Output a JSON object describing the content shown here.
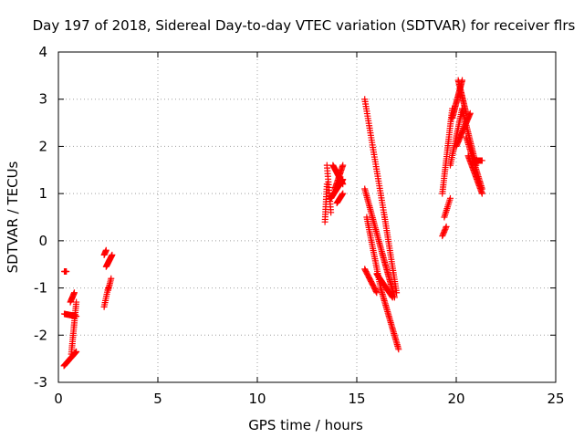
{
  "chart_data": {
    "type": "scatter",
    "title": "Day 197 of 2018, Sidereal Day-to-day VTEC variation (SDTVAR) for receiver flrs",
    "xlabel": "GPS time / hours",
    "ylabel": "SDTVAR / TECUs",
    "xlim": [
      0,
      25
    ],
    "ylim": [
      -3,
      4
    ],
    "x_ticks": [
      "0",
      "5",
      "10",
      "15",
      "20",
      "25"
    ],
    "y_ticks": [
      "-3",
      "-2",
      "-1",
      "0",
      "1",
      "2",
      "3",
      "4"
    ],
    "grid": true,
    "legend": "none",
    "marker": "plus",
    "color": "#ff0000",
    "segments": [
      {
        "x0": 0.3,
        "x1": 0.4,
        "y0": -0.65,
        "y1": -0.65,
        "n": 6
      },
      {
        "x0": 0.28,
        "x1": 0.9,
        "y0": -2.65,
        "y1": -2.35,
        "n": 26
      },
      {
        "x0": 0.3,
        "x1": 0.9,
        "y0": -1.55,
        "y1": -1.6,
        "n": 18
      },
      {
        "x0": 0.65,
        "x1": 0.9,
        "y0": -2.4,
        "y1": -1.3,
        "n": 26
      },
      {
        "x0": 0.6,
        "x1": 0.8,
        "y0": -1.3,
        "y1": -1.1,
        "n": 10
      },
      {
        "x0": 2.3,
        "x1": 2.5,
        "y0": -1.4,
        "y1": -1.0,
        "n": 10
      },
      {
        "x0": 2.5,
        "x1": 2.65,
        "y0": -1.05,
        "y1": -0.8,
        "n": 8
      },
      {
        "x0": 2.3,
        "x1": 2.4,
        "y0": -0.3,
        "y1": -0.2,
        "n": 6
      },
      {
        "x0": 2.4,
        "x1": 2.7,
        "y0": -0.55,
        "y1": -0.3,
        "n": 16
      },
      {
        "x0": 13.4,
        "x1": 13.5,
        "y0": 0.4,
        "y1": 1.2,
        "n": 16
      },
      {
        "x0": 13.5,
        "x1": 13.7,
        "y0": 1.6,
        "y1": 0.6,
        "n": 18
      },
      {
        "x0": 13.7,
        "x1": 14.3,
        "y0": 0.9,
        "y1": 1.3,
        "n": 30
      },
      {
        "x0": 13.8,
        "x1": 14.3,
        "y0": 1.6,
        "y1": 1.2,
        "n": 24
      },
      {
        "x0": 13.9,
        "x1": 14.3,
        "y0": 1.1,
        "y1": 1.6,
        "n": 20
      },
      {
        "x0": 14.0,
        "x1": 14.3,
        "y0": 0.8,
        "y1": 1.0,
        "n": 12
      },
      {
        "x0": 15.4,
        "x1": 16.4,
        "y0": 3.0,
        "y1": 0.5,
        "n": 50
      },
      {
        "x0": 16.4,
        "x1": 17.0,
        "y0": 0.5,
        "y1": -1.1,
        "n": 35
      },
      {
        "x0": 15.4,
        "x1": 16.3,
        "y0": 1.1,
        "y1": -0.3,
        "n": 40
      },
      {
        "x0": 16.3,
        "x1": 16.9,
        "y0": -0.3,
        "y1": -1.2,
        "n": 30
      },
      {
        "x0": 15.5,
        "x1": 16.2,
        "y0": 0.5,
        "y1": -1.0,
        "n": 35
      },
      {
        "x0": 16.2,
        "x1": 17.1,
        "y0": -1.0,
        "y1": -2.3,
        "n": 40
      },
      {
        "x0": 15.4,
        "x1": 16.0,
        "y0": -0.6,
        "y1": -1.1,
        "n": 20
      },
      {
        "x0": 16.0,
        "x1": 16.8,
        "y0": -0.7,
        "y1": -1.2,
        "n": 25
      },
      {
        "x0": 19.3,
        "x1": 19.5,
        "y0": 0.1,
        "y1": 0.3,
        "n": 8
      },
      {
        "x0": 19.4,
        "x1": 19.7,
        "y0": 0.5,
        "y1": 0.9,
        "n": 12
      },
      {
        "x0": 19.3,
        "x1": 19.8,
        "y0": 1.0,
        "y1": 2.8,
        "n": 40
      },
      {
        "x0": 19.8,
        "x1": 20.3,
        "y0": 2.6,
        "y1": 3.4,
        "n": 30
      },
      {
        "x0": 20.1,
        "x1": 20.5,
        "y0": 3.4,
        "y1": 2.7,
        "n": 25
      },
      {
        "x0": 19.7,
        "x1": 20.3,
        "y0": 1.6,
        "y1": 2.8,
        "n": 30
      },
      {
        "x0": 20.0,
        "x1": 20.7,
        "y0": 2.0,
        "y1": 2.7,
        "n": 30
      },
      {
        "x0": 20.3,
        "x1": 21.0,
        "y0": 2.8,
        "y1": 1.6,
        "n": 35
      },
      {
        "x0": 20.5,
        "x1": 21.3,
        "y0": 2.2,
        "y1": 1.1,
        "n": 35
      },
      {
        "x0": 20.6,
        "x1": 21.3,
        "y0": 1.8,
        "y1": 1.0,
        "n": 30
      },
      {
        "x0": 21.0,
        "x1": 21.3,
        "y0": 1.7,
        "y1": 1.7,
        "n": 8
      }
    ]
  }
}
